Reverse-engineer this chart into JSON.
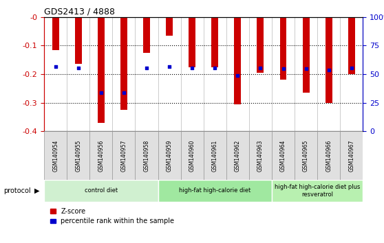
{
  "title": "GDS2413 / 4888",
  "samples": [
    "GSM140954",
    "GSM140955",
    "GSM140956",
    "GSM140957",
    "GSM140958",
    "GSM140959",
    "GSM140960",
    "GSM140961",
    "GSM140962",
    "GSM140963",
    "GSM140964",
    "GSM140965",
    "GSM140966",
    "GSM140967"
  ],
  "zscore": [
    -0.115,
    -0.165,
    -0.37,
    -0.325,
    -0.125,
    -0.065,
    -0.175,
    -0.175,
    -0.305,
    -0.195,
    -0.22,
    -0.265,
    -0.3,
    -0.2
  ],
  "percentile": [
    0.565,
    0.555,
    0.34,
    0.34,
    0.555,
    0.565,
    0.555,
    0.555,
    0.49,
    0.555,
    0.545,
    0.545,
    0.535,
    0.555
  ],
  "ylim_left": [
    -0.4,
    0.0
  ],
  "ylim_right": [
    0,
    100
  ],
  "left_ticks": [
    0.0,
    -0.1,
    -0.2,
    -0.3,
    -0.4
  ],
  "right_ticks": [
    0,
    25,
    50,
    75,
    100
  ],
  "groups": [
    {
      "label": "control diet",
      "start": 0,
      "end": 5,
      "color": "#d0f0d0"
    },
    {
      "label": "high-fat high-calorie diet",
      "start": 5,
      "end": 10,
      "color": "#a0e8a0"
    },
    {
      "label": "high-fat high-calorie diet plus\nresveratrol",
      "start": 10,
      "end": 14,
      "color": "#b8f0b0"
    }
  ],
  "bar_color": "#cc0000",
  "dot_color": "#0000cc",
  "title_color": "#000000",
  "left_axis_color": "#cc0000",
  "right_axis_color": "#0000cc",
  "grid_color": "#000000",
  "bg_color": "#ffffff",
  "col_sep_color": "#cccccc",
  "sample_bg": "#e0e0e0"
}
